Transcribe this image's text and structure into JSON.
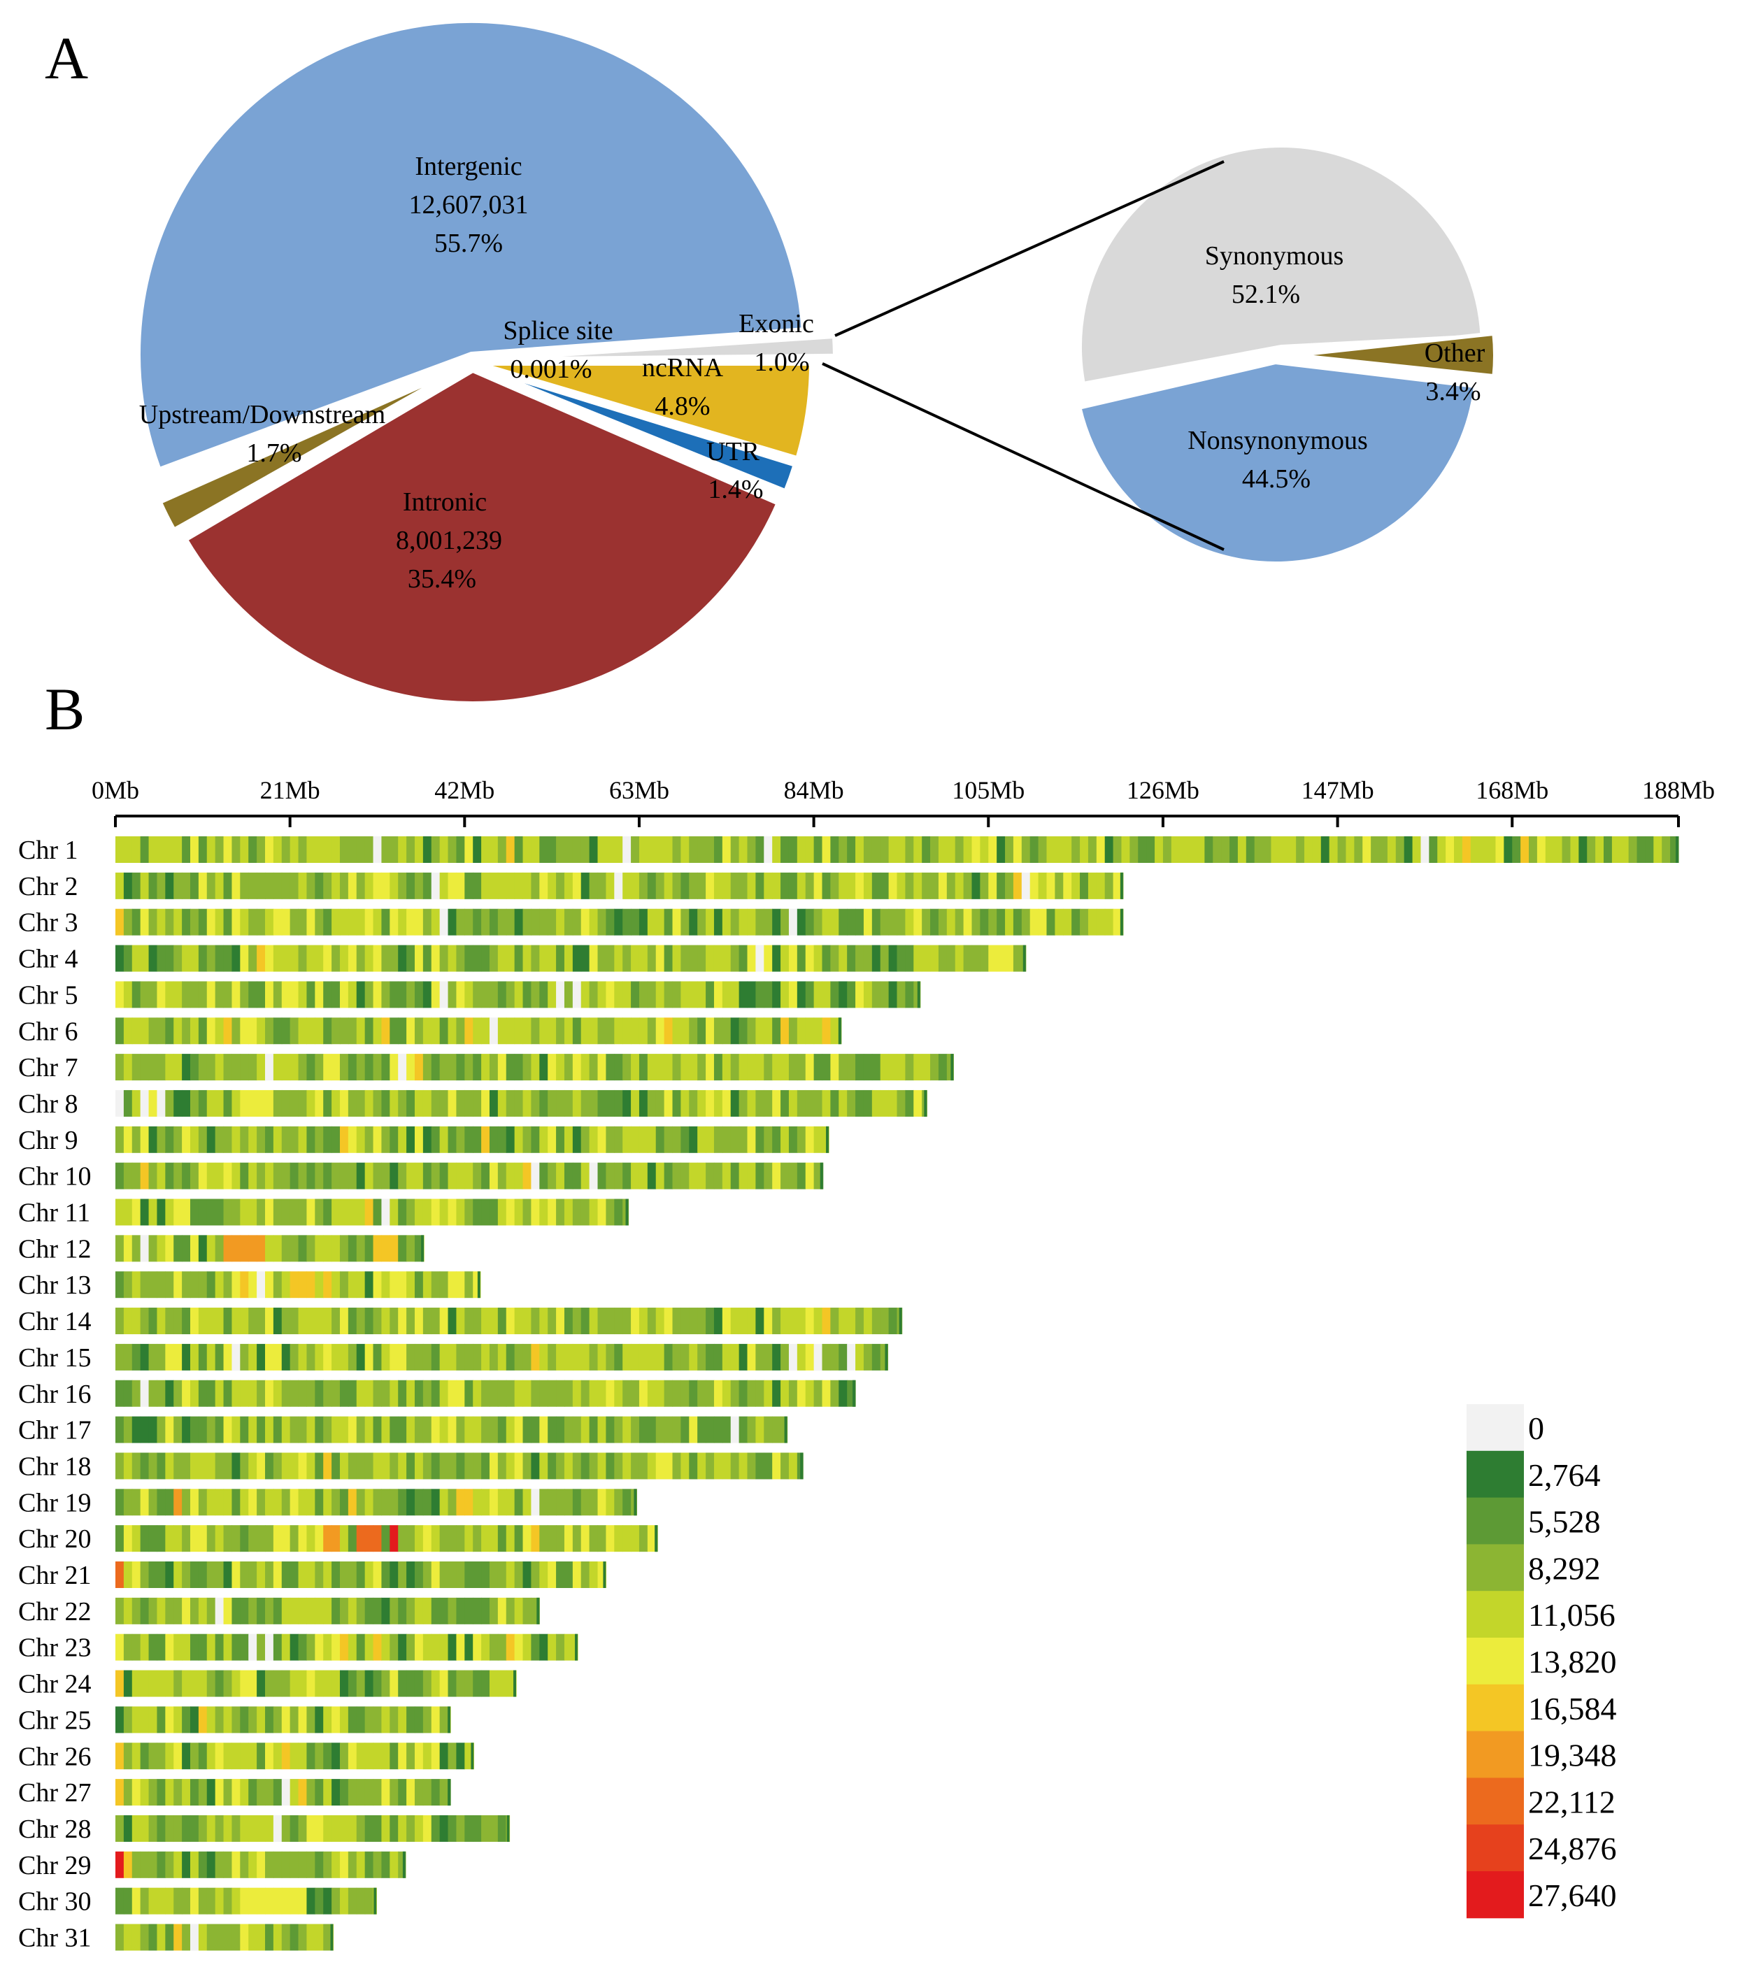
{
  "panels": {
    "a_letter": "A",
    "b_letter": "B"
  },
  "chart_data": [
    {
      "type": "pie",
      "title": "",
      "slices": [
        {
          "name": "Intergenic",
          "count": "12,607,031",
          "percent": "55.7%",
          "value": 55.7,
          "color": "#7aa3d4"
        },
        {
          "name": "Exonic",
          "count": "",
          "percent": "1.0%",
          "value": 1.0,
          "color": "#d9d9d9"
        },
        {
          "name": "Splice site",
          "count": "",
          "percent": "0.001%",
          "value": 0.001,
          "color": "#ffffff"
        },
        {
          "name": "ncRNA",
          "count": "",
          "percent": "4.8%",
          "value": 4.8,
          "color": "#e2b520"
        },
        {
          "name": "UTR",
          "count": "",
          "percent": "1.4%",
          "value": 1.4,
          "color": "#1d6fb8"
        },
        {
          "name": "Intronic",
          "count": "8,001,239",
          "percent": "35.4%",
          "value": 35.4,
          "color": "#9b3230"
        },
        {
          "name": "Upstream/Downstream",
          "count": "",
          "percent": "1.7%",
          "value": 1.7,
          "color": "#8b7424"
        }
      ]
    },
    {
      "type": "pie",
      "title": "",
      "slices": [
        {
          "name": "Synonymous",
          "percent": "52.1%",
          "value": 52.1,
          "color": "#d9d9d9"
        },
        {
          "name": "Nonsynonymous",
          "percent": "44.5%",
          "value": 44.5,
          "color": "#7aa3d4"
        },
        {
          "name": "Other",
          "percent": "3.4%",
          "value": 3.4,
          "color": "#8b7424"
        }
      ]
    },
    {
      "type": "heatmap",
      "title": "",
      "x_unit": "Mb",
      "xlim": [
        0,
        188
      ],
      "x_ticks": [
        "0Mb",
        "21Mb",
        "42Mb",
        "63Mb",
        "84Mb",
        "105Mb",
        "126Mb",
        "147Mb",
        "168Mb",
        "188Mb"
      ],
      "x_tick_values": [
        0,
        21,
        42,
        63,
        84,
        105,
        126,
        147,
        168,
        188
      ],
      "chromosomes": [
        {
          "label": "Chr 1",
          "length_mb": 188.0
        },
        {
          "label": "Chr 2",
          "length_mb": 121.2
        },
        {
          "label": "Chr 3",
          "length_mb": 121.2
        },
        {
          "label": "Chr 4",
          "length_mb": 109.5
        },
        {
          "label": "Chr 5",
          "length_mb": 96.8
        },
        {
          "label": "Chr 6",
          "length_mb": 87.3
        },
        {
          "label": "Chr 7",
          "length_mb": 100.8
        },
        {
          "label": "Chr 8",
          "length_mb": 97.6
        },
        {
          "label": "Chr 9",
          "length_mb": 85.8
        },
        {
          "label": "Chr 10",
          "length_mb": 85.1
        },
        {
          "label": "Chr 11",
          "length_mb": 61.7
        },
        {
          "label": "Chr 12",
          "length_mb": 37.1
        },
        {
          "label": "Chr 13",
          "length_mb": 43.9
        },
        {
          "label": "Chr 14",
          "length_mb": 94.6
        },
        {
          "label": "Chr 15",
          "length_mb": 92.9
        },
        {
          "label": "Chr 16",
          "length_mb": 89.0
        },
        {
          "label": "Chr 17",
          "length_mb": 80.8
        },
        {
          "label": "Chr 18",
          "length_mb": 82.7
        },
        {
          "label": "Chr 19",
          "length_mb": 62.7
        },
        {
          "label": "Chr 20",
          "length_mb": 65.2
        },
        {
          "label": "Chr 21",
          "length_mb": 59.0
        },
        {
          "label": "Chr 22",
          "length_mb": 51.0
        },
        {
          "label": "Chr 23",
          "length_mb": 55.6
        },
        {
          "label": "Chr 24",
          "length_mb": 48.2
        },
        {
          "label": "Chr 25",
          "length_mb": 40.3
        },
        {
          "label": "Chr 26",
          "length_mb": 43.1
        },
        {
          "label": "Chr 27",
          "length_mb": 40.3
        },
        {
          "label": "Chr 28",
          "length_mb": 47.4
        },
        {
          "label": "Chr 29",
          "length_mb": 34.9
        },
        {
          "label": "Chr 30",
          "length_mb": 31.4
        },
        {
          "label": "Chr 31",
          "length_mb": 26.2
        }
      ],
      "hotspots": [
        {
          "chr": "Chr 12",
          "start_mb": 13,
          "end_mb": 18,
          "level": 7
        },
        {
          "chr": "Chr 12",
          "start_mb": 31,
          "end_mb": 34,
          "level": 6
        },
        {
          "chr": "Chr 13",
          "start_mb": 22,
          "end_mb": 24,
          "level": 6
        },
        {
          "chr": "Chr 19",
          "start_mb": 7,
          "end_mb": 8,
          "level": 7
        },
        {
          "chr": "Chr 20",
          "start_mb": 25,
          "end_mb": 27,
          "level": 7
        },
        {
          "chr": "Chr 20",
          "start_mb": 29,
          "end_mb": 32,
          "level": 8
        },
        {
          "chr": "Chr 20",
          "start_mb": 33,
          "end_mb": 34,
          "level": 10
        },
        {
          "chr": "Chr 21",
          "start_mb": 0,
          "end_mb": 1,
          "level": 8
        },
        {
          "chr": "Chr 24",
          "start_mb": 0,
          "end_mb": 1,
          "level": 6
        },
        {
          "chr": "Chr 26",
          "start_mb": 0,
          "end_mb": 1,
          "level": 6
        },
        {
          "chr": "Chr 27",
          "start_mb": 0,
          "end_mb": 1,
          "level": 6
        },
        {
          "chr": "Chr 29",
          "start_mb": 0,
          "end_mb": 1,
          "level": 10
        },
        {
          "chr": "Chr 29",
          "start_mb": 1,
          "end_mb": 2,
          "level": 6
        },
        {
          "chr": "Chr 30",
          "start_mb": 15,
          "end_mb": 21,
          "level": 5
        }
      ],
      "legend": {
        "position": "bottom-right",
        "entries": [
          {
            "label": "0",
            "color": "#f2f2f2"
          },
          {
            "label": "2,764",
            "color": "#2e7d32"
          },
          {
            "label": "5,528",
            "color": "#5d9a35"
          },
          {
            "label": "8,292",
            "color": "#8cb533"
          },
          {
            "label": "11,056",
            "color": "#c3d62a"
          },
          {
            "label": "13,820",
            "color": "#ecec3c"
          },
          {
            "label": "16,584",
            "color": "#f4c625"
          },
          {
            "label": "19,348",
            "color": "#f29a22"
          },
          {
            "label": "22,112",
            "color": "#ec6a1e"
          },
          {
            "label": "24,876",
            "color": "#e6411d"
          },
          {
            "label": "27,640",
            "color": "#e31b1d"
          }
        ]
      }
    }
  ]
}
